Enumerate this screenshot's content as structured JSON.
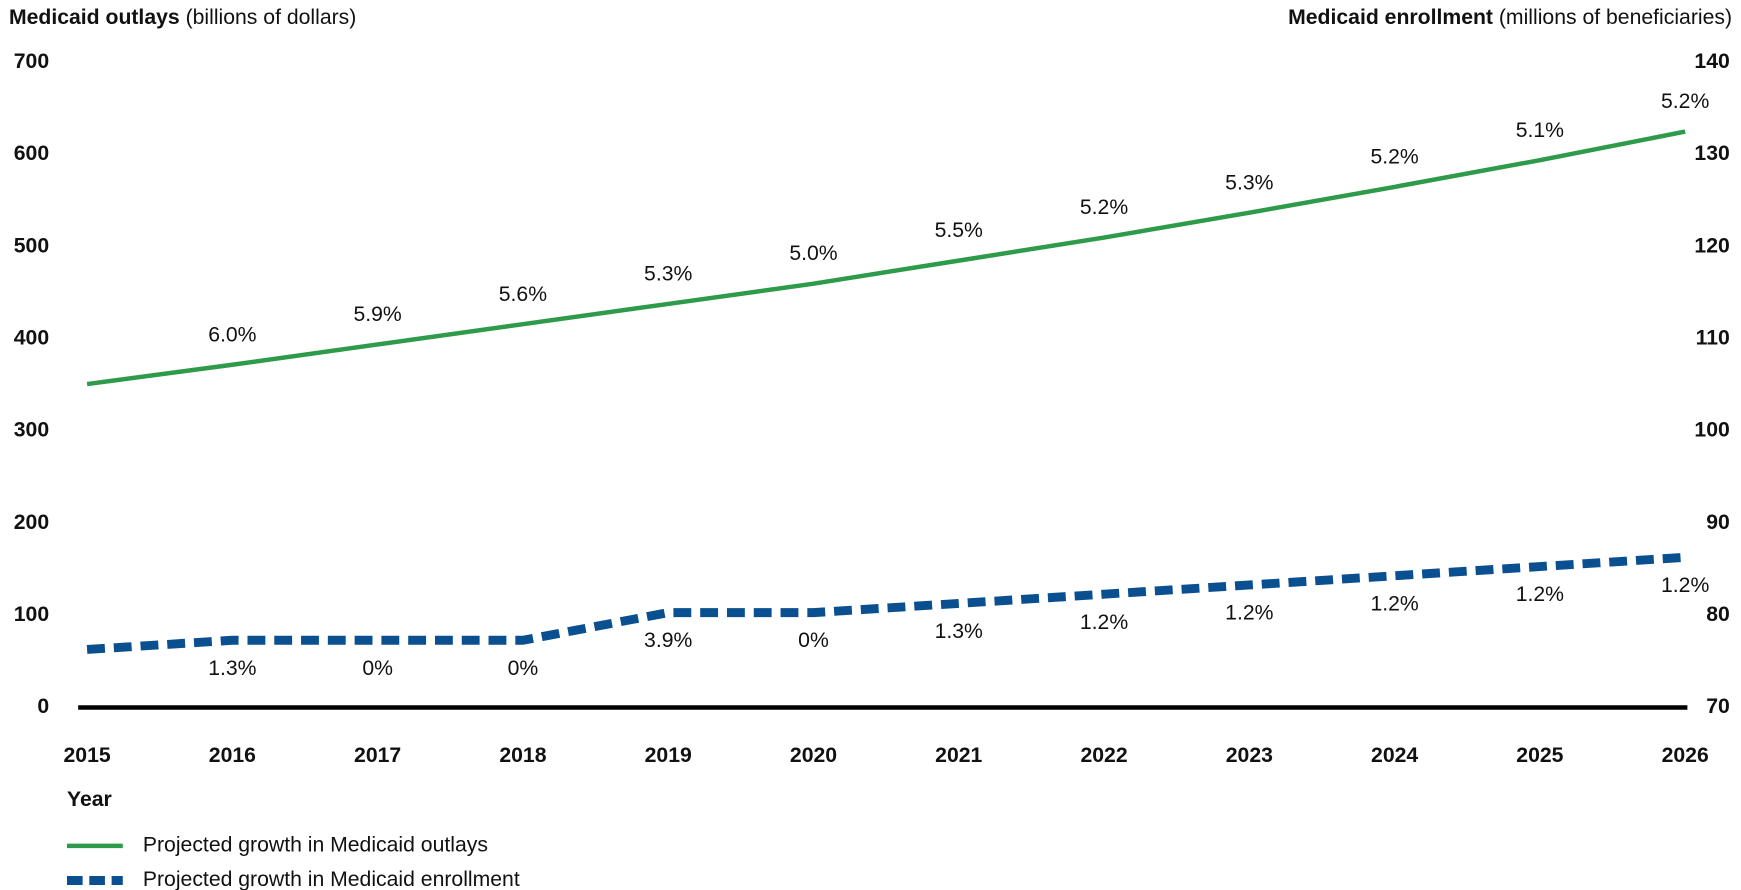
{
  "chart_data": {
    "type": "line",
    "y_label": {
      "bold": "Medicaid outlays",
      "rest": "(billions of dollars)"
    },
    "y2_label": {
      "bold": "Medicaid enrollment",
      "rest": "(millions of beneficiaries)"
    },
    "x_label": "Year",
    "x": [
      2015,
      2016,
      2017,
      2018,
      2019,
      2020,
      2021,
      2022,
      2023,
      2024,
      2025,
      2026
    ],
    "xlim": [
      2015,
      2026
    ],
    "xticks": [
      2015,
      2016,
      2017,
      2018,
      2019,
      2020,
      2021,
      2022,
      2023,
      2024,
      2025,
      2026
    ],
    "ylim": [
      0,
      700
    ],
    "yticks": [
      0,
      100,
      200,
      300,
      400,
      500,
      600,
      700
    ],
    "y2lim": [
      70,
      140
    ],
    "y2ticks": [
      70,
      80,
      90,
      100,
      110,
      120,
      130,
      140
    ],
    "legend": "bottom-left",
    "series": [
      {
        "name": "Projected growth in Medicaid outlays",
        "color": "#2e9b4a",
        "style": "solid",
        "values": [
          351,
          372,
          394,
          416,
          438,
          460,
          485,
          510,
          537,
          565,
          594,
          625
        ],
        "growth_labels": [
          null,
          "6.0%",
          "5.9%",
          "5.6%",
          "5.3%",
          "5.0%",
          "5.5%",
          "5.2%",
          "5.3%",
          "5.2%",
          "5.1%",
          "5.2%"
        ]
      },
      {
        "name": "Projected growth in Medicaid enrollment",
        "color": "#0a4f8f",
        "style": "dashed",
        "axis": "y2",
        "values": [
          76.3,
          77.3,
          77.3,
          77.3,
          80.3,
          80.3,
          81.3,
          82.3,
          83.3,
          84.3,
          85.3,
          86.3
        ],
        "growth_labels": [
          null,
          "1.3%",
          "0%",
          "0%",
          "3.9%",
          "0%",
          "1.3%",
          "1.2%",
          "1.2%",
          "1.2%",
          "1.2%",
          "1.2%"
        ]
      }
    ]
  }
}
